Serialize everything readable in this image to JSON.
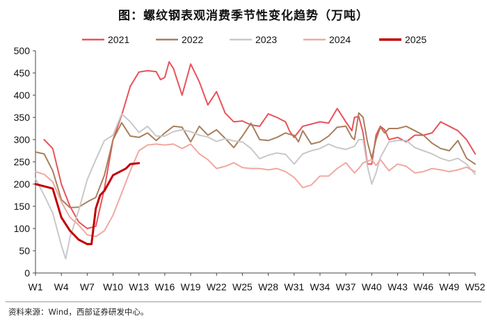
{
  "chart_data": {
    "type": "line",
    "title": "图：螺纹钢表观消费季节性变化趋势（万吨）",
    "source": "资料来源：Wind，西部证券研发中心。",
    "xlabel": "",
    "ylabel": "",
    "ylim": [
      0,
      500
    ],
    "yticks": [
      0,
      50,
      100,
      150,
      200,
      250,
      300,
      350,
      400,
      450,
      500
    ],
    "xlim": [
      1,
      52
    ],
    "xtick_weeks": [
      1,
      4,
      7,
      10,
      13,
      16,
      19,
      22,
      25,
      28,
      31,
      34,
      37,
      40,
      43,
      46,
      49,
      52
    ],
    "xtick_labels": [
      "W1",
      "W4",
      "W7",
      "W10",
      "W13",
      "W16",
      "W19",
      "W22",
      "W25",
      "W28",
      "W31",
      "W34",
      "W37",
      "W40",
      "W43",
      "W46",
      "W49",
      "W52"
    ],
    "grid": false,
    "legend": "top",
    "series": [
      {
        "name": "2021",
        "color": "#e8525a",
        "width": 2,
        "points": [
          [
            2,
            300
          ],
          [
            3,
            280
          ],
          [
            4,
            200
          ],
          [
            5,
            150
          ],
          [
            6,
            115
          ],
          [
            7,
            100
          ],
          [
            8,
            105
          ],
          [
            9,
            190
          ],
          [
            10,
            300
          ],
          [
            11,
            355
          ],
          [
            12,
            420
          ],
          [
            13,
            452
          ],
          [
            14,
            455
          ],
          [
            15,
            453
          ],
          [
            15.5,
            435
          ],
          [
            16,
            440
          ],
          [
            16.5,
            475
          ],
          [
            17,
            460
          ],
          [
            18,
            400
          ],
          [
            19,
            470
          ],
          [
            20,
            430
          ],
          [
            21,
            378
          ],
          [
            22,
            408
          ],
          [
            23,
            360
          ],
          [
            24,
            340
          ],
          [
            25,
            342
          ],
          [
            26,
            333
          ],
          [
            27,
            330
          ],
          [
            28,
            358
          ],
          [
            29,
            350
          ],
          [
            30,
            340
          ],
          [
            30.5,
            318
          ],
          [
            31,
            305
          ],
          [
            32,
            330
          ],
          [
            33,
            335
          ],
          [
            34,
            340
          ],
          [
            35,
            337
          ],
          [
            36,
            370
          ],
          [
            37,
            340
          ],
          [
            37.7,
            320
          ],
          [
            38,
            350
          ],
          [
            38.5,
            352
          ],
          [
            39,
            315
          ],
          [
            39.5,
            245
          ],
          [
            40,
            245
          ],
          [
            40.5,
            310
          ],
          [
            41,
            330
          ],
          [
            41.5,
            322
          ],
          [
            42,
            300
          ],
          [
            43,
            305
          ],
          [
            44,
            295
          ],
          [
            45,
            310
          ],
          [
            46,
            310
          ],
          [
            47,
            315
          ],
          [
            48,
            340
          ],
          [
            49,
            330
          ],
          [
            50,
            320
          ],
          [
            51,
            300
          ],
          [
            52,
            268
          ]
        ]
      },
      {
        "name": "2022",
        "color": "#a77f5d",
        "width": 2,
        "points": [
          [
            1,
            272
          ],
          [
            2,
            268
          ],
          [
            3,
            230
          ],
          [
            4,
            165
          ],
          [
            5,
            147
          ],
          [
            6,
            148
          ],
          [
            7,
            160
          ],
          [
            8,
            170
          ],
          [
            9,
            220
          ],
          [
            10,
            300
          ],
          [
            11,
            338
          ],
          [
            12,
            308
          ],
          [
            13,
            305
          ],
          [
            14,
            315
          ],
          [
            15,
            298
          ],
          [
            16,
            315
          ],
          [
            17,
            330
          ],
          [
            18,
            328
          ],
          [
            19,
            295
          ],
          [
            20,
            330
          ],
          [
            21,
            310
          ],
          [
            22,
            322
          ],
          [
            23,
            303
          ],
          [
            24,
            282
          ],
          [
            25,
            308
          ],
          [
            26,
            337
          ],
          [
            27,
            300
          ],
          [
            28,
            298
          ],
          [
            29,
            305
          ],
          [
            30,
            315
          ],
          [
            30.8,
            310
          ],
          [
            31,
            310
          ],
          [
            31.5,
            295
          ],
          [
            32,
            320
          ],
          [
            33,
            290
          ],
          [
            34,
            295
          ],
          [
            35,
            308
          ],
          [
            36,
            328
          ],
          [
            37,
            330
          ],
          [
            37.7,
            305
          ],
          [
            38,
            300
          ],
          [
            38.5,
            360
          ],
          [
            39,
            350
          ],
          [
            39.5,
            295
          ],
          [
            40,
            258
          ],
          [
            40.5,
            300
          ],
          [
            41,
            328
          ],
          [
            41.5,
            315
          ],
          [
            42,
            325
          ],
          [
            43,
            325
          ],
          [
            44,
            330
          ],
          [
            45,
            320
          ],
          [
            46,
            310
          ],
          [
            47,
            292
          ],
          [
            48,
            280
          ],
          [
            49,
            275
          ],
          [
            50,
            298
          ],
          [
            51,
            258
          ],
          [
            52,
            245
          ]
        ]
      },
      {
        "name": "2023",
        "color": "#c8c8c8",
        "width": 2,
        "points": [
          [
            1,
            212
          ],
          [
            2,
            175
          ],
          [
            3,
            135
          ],
          [
            4,
            62
          ],
          [
            4.5,
            32
          ],
          [
            5,
            80
          ],
          [
            6,
            140
          ],
          [
            7,
            210
          ],
          [
            8,
            255
          ],
          [
            9,
            298
          ],
          [
            10,
            310
          ],
          [
            11,
            358
          ],
          [
            12,
            340
          ],
          [
            13,
            316
          ],
          [
            14,
            330
          ],
          [
            15,
            308
          ],
          [
            16,
            308
          ],
          [
            17,
            318
          ],
          [
            18,
            322
          ],
          [
            19,
            318
          ],
          [
            20,
            310
          ],
          [
            21,
            306
          ],
          [
            22,
            296
          ],
          [
            23,
            302
          ],
          [
            24,
            297
          ],
          [
            25,
            295
          ],
          [
            26,
            280
          ],
          [
            27,
            257
          ],
          [
            28,
            265
          ],
          [
            29,
            270
          ],
          [
            30,
            267
          ],
          [
            31,
            245
          ],
          [
            32,
            268
          ],
          [
            33,
            275
          ],
          [
            34,
            280
          ],
          [
            35,
            290
          ],
          [
            36,
            282
          ],
          [
            37,
            278
          ],
          [
            38,
            285
          ],
          [
            38.5,
            300
          ],
          [
            39,
            300
          ],
          [
            39.5,
            240
          ],
          [
            40,
            200
          ],
          [
            40.5,
            225
          ],
          [
            41,
            260
          ],
          [
            42,
            295
          ],
          [
            43,
            298
          ],
          [
            44,
            298
          ],
          [
            45,
            282
          ],
          [
            46,
            275
          ],
          [
            47,
            268
          ],
          [
            48,
            258
          ],
          [
            49,
            252
          ],
          [
            50,
            258
          ],
          [
            51,
            245
          ],
          [
            52,
            222
          ]
        ]
      },
      {
        "name": "2024",
        "color": "#f0a8a0",
        "width": 2,
        "points": [
          [
            1,
            228
          ],
          [
            2,
            222
          ],
          [
            3,
            205
          ],
          [
            4,
            160
          ],
          [
            5,
            125
          ],
          [
            6,
            108
          ],
          [
            7,
            86
          ],
          [
            8,
            82
          ],
          [
            9,
            95
          ],
          [
            10,
            130
          ],
          [
            11,
            180
          ],
          [
            12,
            230
          ],
          [
            13,
            275
          ],
          [
            14,
            288
          ],
          [
            15,
            290
          ],
          [
            16,
            288
          ],
          [
            17,
            290
          ],
          [
            18,
            280
          ],
          [
            19,
            290
          ],
          [
            20,
            268
          ],
          [
            21,
            255
          ],
          [
            22,
            235
          ],
          [
            23,
            240
          ],
          [
            24,
            248
          ],
          [
            25,
            237
          ],
          [
            26,
            235
          ],
          [
            27,
            235
          ],
          [
            28,
            232
          ],
          [
            29,
            235
          ],
          [
            30,
            228
          ],
          [
            31,
            215
          ],
          [
            32,
            192
          ],
          [
            33,
            198
          ],
          [
            34,
            218
          ],
          [
            35,
            218
          ],
          [
            36,
            235
          ],
          [
            37,
            248
          ],
          [
            38,
            225
          ],
          [
            38.5,
            235
          ],
          [
            39,
            248
          ],
          [
            40,
            255
          ],
          [
            40.5,
            242
          ],
          [
            41,
            255
          ],
          [
            42,
            230
          ],
          [
            43,
            245
          ],
          [
            44,
            240
          ],
          [
            45,
            225
          ],
          [
            46,
            228
          ],
          [
            47,
            235
          ],
          [
            48,
            232
          ],
          [
            49,
            228
          ],
          [
            50,
            232
          ],
          [
            51,
            238
          ],
          [
            52,
            228
          ]
        ]
      },
      {
        "name": "2025",
        "color": "#c00000",
        "width": 3,
        "points": [
          [
            1,
            200
          ],
          [
            2,
            195
          ],
          [
            3,
            190
          ],
          [
            4,
            125
          ],
          [
            5,
            95
          ],
          [
            6,
            75
          ],
          [
            7,
            65
          ],
          [
            7.5,
            65
          ],
          [
            8,
            145
          ],
          [
            8.5,
            175
          ],
          [
            9,
            185
          ],
          [
            10,
            220
          ],
          [
            11,
            230
          ],
          [
            11.5,
            235
          ],
          [
            12,
            245
          ],
          [
            13,
            247
          ]
        ]
      }
    ]
  }
}
